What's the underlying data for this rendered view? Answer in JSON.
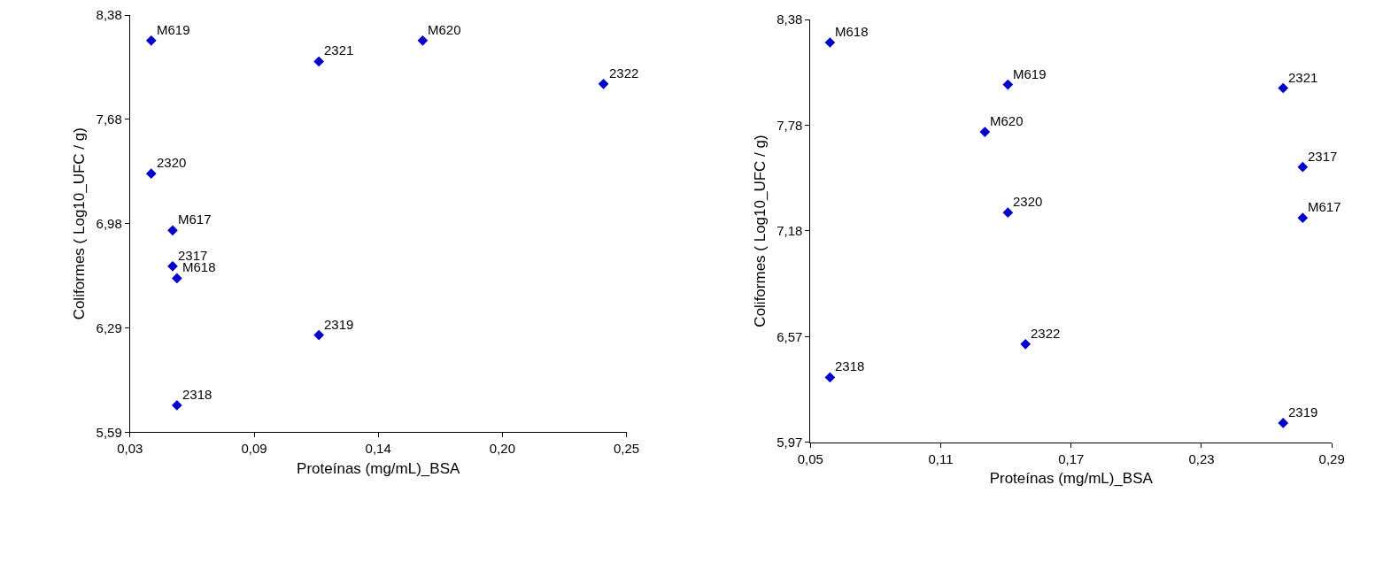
{
  "chart_data": [
    {
      "type": "scatter",
      "xlabel": "Proteínas (mg/mL)_BSA",
      "ylabel": "Coliformes ( Log10_UFC / g)",
      "marker": "diamond",
      "series": [
        {
          "color": "#0000cc",
          "x": [
            0.0394,
            0.1137,
            0.1597,
            0.2398,
            0.0394,
            0.0489,
            0.0489,
            0.0508,
            0.1137,
            0.0508
          ],
          "values": [
            8.21,
            8.07,
            8.21,
            7.92,
            7.32,
            6.94,
            6.7,
            6.62,
            6.24,
            5.77
          ]
        }
      ],
      "annotations": [
        {
          "text": "M619",
          "x": 0.0394,
          "y": 8.21
        },
        {
          "text": "2321",
          "x": 0.1137,
          "y": 8.07
        },
        {
          "text": "M620",
          "x": 0.1597,
          "y": 8.21
        },
        {
          "text": "2322",
          "x": 0.2398,
          "y": 7.92
        },
        {
          "text": "2320",
          "x": 0.0394,
          "y": 7.32
        },
        {
          "text": "M617",
          "x": 0.0489,
          "y": 6.94
        },
        {
          "text": "2317",
          "x": 0.0489,
          "y": 6.7
        },
        {
          "text": "M618",
          "x": 0.0508,
          "y": 6.62
        },
        {
          "text": "2319",
          "x": 0.1137,
          "y": 6.24
        },
        {
          "text": "2318",
          "x": 0.0508,
          "y": 5.77
        }
      ],
      "xlim": [
        0.03,
        0.25
      ],
      "xticks": [
        {
          "value": 0.03,
          "label": "0,03"
        },
        {
          "value": 0.085,
          "label": "0,09"
        },
        {
          "value": 0.14,
          "label": "0,14"
        },
        {
          "value": 0.195,
          "label": "0,20"
        },
        {
          "value": 0.25,
          "label": "0,25"
        }
      ],
      "ylim": [
        5.59,
        8.38
      ],
      "yticks": [
        {
          "value": 5.59,
          "label": "5,59"
        },
        {
          "value": 6.2875,
          "label": "6,29"
        },
        {
          "value": 6.985,
          "label": "6,98"
        },
        {
          "value": 7.6825,
          "label": "7,68"
        },
        {
          "value": 8.38,
          "label": "8,38"
        }
      ]
    },
    {
      "type": "scatter",
      "xlabel": "Proteínas (mg/mL)_BSA",
      "ylabel": "Coliformes ( Log10_UFC / g)",
      "marker": "diamond",
      "series": [
        {
          "color": "#0000cc",
          "x": [
            0.059,
            0.1409,
            0.2676,
            0.1303,
            0.2766,
            0.1409,
            0.2766,
            0.149,
            0.059,
            0.2676
          ],
          "values": [
            8.25,
            8.01,
            7.99,
            7.74,
            7.54,
            7.28,
            7.25,
            6.53,
            6.34,
            6.08
          ]
        }
      ],
      "annotations": [
        {
          "text": "M618",
          "x": 0.059,
          "y": 8.25
        },
        {
          "text": "M619",
          "x": 0.1409,
          "y": 8.01
        },
        {
          "text": "2321",
          "x": 0.2676,
          "y": 7.99
        },
        {
          "text": "M620",
          "x": 0.1303,
          "y": 7.74
        },
        {
          "text": "2317",
          "x": 0.2766,
          "y": 7.54
        },
        {
          "text": "2320",
          "x": 0.1409,
          "y": 7.28
        },
        {
          "text": "M617",
          "x": 0.2766,
          "y": 7.25
        },
        {
          "text": "2322",
          "x": 0.149,
          "y": 6.53
        },
        {
          "text": "2318",
          "x": 0.059,
          "y": 6.34
        },
        {
          "text": "2319",
          "x": 0.2676,
          "y": 6.08
        }
      ],
      "xlim": [
        0.05,
        0.29
      ],
      "xticks": [
        {
          "value": 0.05,
          "label": "0,05"
        },
        {
          "value": 0.11,
          "label": "0,11"
        },
        {
          "value": 0.17,
          "label": "0,17"
        },
        {
          "value": 0.23,
          "label": "0,23"
        },
        {
          "value": 0.29,
          "label": "0,29"
        }
      ],
      "ylim": [
        5.97,
        8.38
      ],
      "yticks": [
        {
          "value": 5.97,
          "label": "5,97"
        },
        {
          "value": 6.5725,
          "label": "6,57"
        },
        {
          "value": 7.175,
          "label": "7,18"
        },
        {
          "value": 7.7775,
          "label": "7,78"
        },
        {
          "value": 8.38,
          "label": "8,38"
        }
      ]
    }
  ]
}
